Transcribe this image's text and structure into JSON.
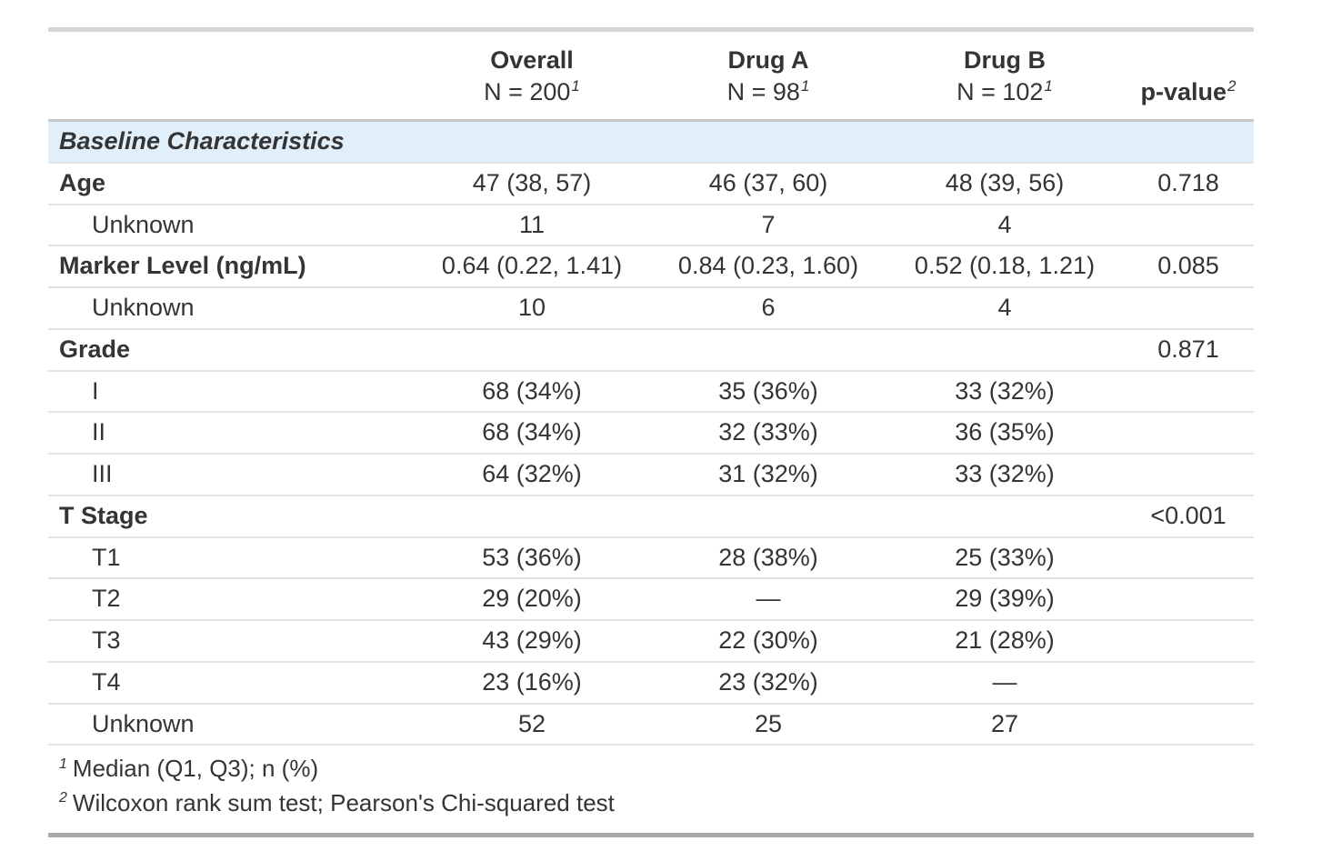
{
  "table": {
    "header": {
      "columns": [
        {
          "label": "",
          "sublabel": "",
          "sup": ""
        },
        {
          "label": "Overall",
          "sublabel": "N = 200",
          "sup": "1"
        },
        {
          "label": "Drug A",
          "sublabel": "N = 98",
          "sup": "1"
        },
        {
          "label": "Drug B",
          "sublabel": "N = 102",
          "sup": "1"
        },
        {
          "label": "p-value",
          "sublabel": "",
          "sup": "2"
        }
      ]
    },
    "rows": [
      {
        "type": "group",
        "label": "Baseline Characteristics",
        "values": [
          "",
          "",
          "",
          ""
        ]
      },
      {
        "type": "variable",
        "label": "Age",
        "values": [
          "47 (38, 57)",
          "46 (37, 60)",
          "48 (39, 56)",
          "0.718"
        ]
      },
      {
        "type": "level",
        "label": "Unknown",
        "values": [
          "11",
          "7",
          "4",
          ""
        ]
      },
      {
        "type": "variable",
        "label": "Marker Level (ng/mL)",
        "values": [
          "0.64 (0.22, 1.41)",
          "0.84 (0.23, 1.60)",
          "0.52 (0.18, 1.21)",
          "0.085"
        ]
      },
      {
        "type": "level",
        "label": "Unknown",
        "values": [
          "10",
          "6",
          "4",
          ""
        ]
      },
      {
        "type": "variable",
        "label": "Grade",
        "values": [
          "",
          "",
          "",
          "0.871"
        ]
      },
      {
        "type": "level",
        "label": "I",
        "values": [
          "68 (34%)",
          "35 (36%)",
          "33 (32%)",
          ""
        ]
      },
      {
        "type": "level",
        "label": "II",
        "values": [
          "68 (34%)",
          "32 (33%)",
          "36 (35%)",
          ""
        ]
      },
      {
        "type": "level",
        "label": "III",
        "values": [
          "64 (32%)",
          "31 (32%)",
          "33 (32%)",
          ""
        ]
      },
      {
        "type": "variable",
        "label": "T Stage",
        "values": [
          "",
          "",
          "",
          "<0.001"
        ]
      },
      {
        "type": "level",
        "label": "T1",
        "values": [
          "53 (36%)",
          "28 (38%)",
          "25 (33%)",
          ""
        ]
      },
      {
        "type": "level",
        "label": "T2",
        "values": [
          "29 (20%)",
          "—",
          "29 (39%)",
          ""
        ]
      },
      {
        "type": "level",
        "label": "T3",
        "values": [
          "43 (29%)",
          "22 (30%)",
          "21 (28%)",
          ""
        ]
      },
      {
        "type": "level",
        "label": "T4",
        "values": [
          "23 (16%)",
          "23 (32%)",
          "—",
          ""
        ]
      },
      {
        "type": "level",
        "label": "Unknown",
        "values": [
          "52",
          "25",
          "27",
          ""
        ]
      }
    ],
    "footnotes": [
      {
        "sup": "1",
        "text": "Median (Q1, Q3); n (%)"
      },
      {
        "sup": "2",
        "text": "Wilcoxon rank sum test; Pearson's Chi-squared test"
      }
    ],
    "colors": {
      "group_row_bg": "#e1effb",
      "top_border": "#d5d5d5",
      "bottom_border": "#a9a9a9",
      "header_rule": "#c7c7c7",
      "row_rule": "#e3e3e3",
      "text": "#343434"
    }
  }
}
